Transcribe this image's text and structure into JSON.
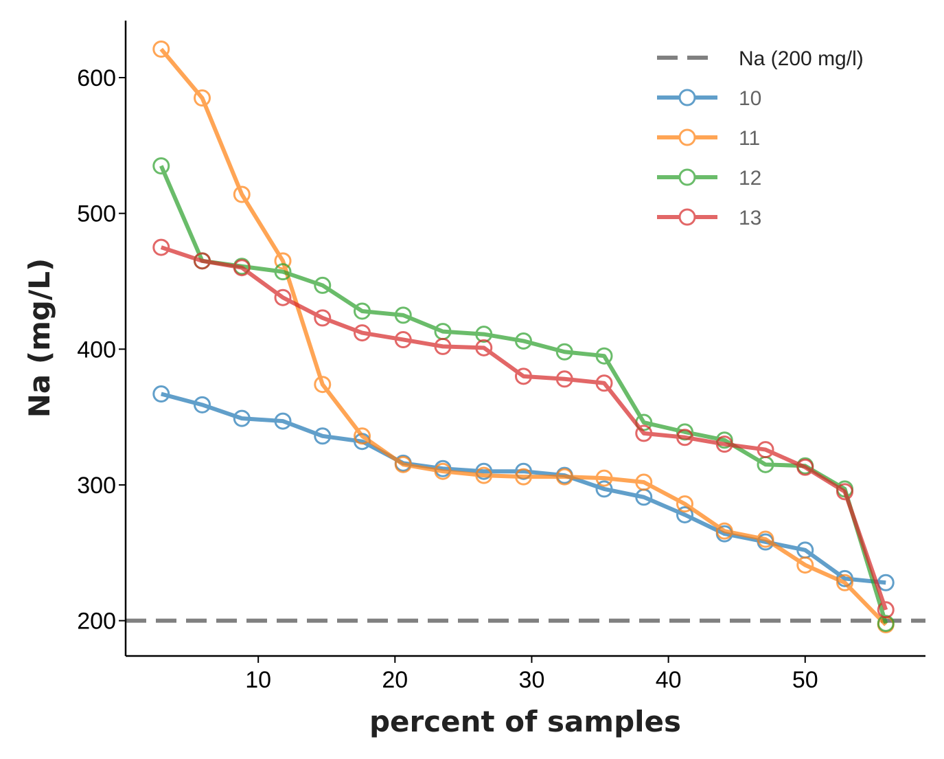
{
  "chart_data": {
    "type": "line",
    "xlabel": "percent of samples",
    "ylabel": "Na (mg/L)",
    "xlim": [
      0.3,
      58.8
    ],
    "ylim": [
      174,
      642
    ],
    "xticks": [
      10,
      20,
      30,
      40,
      50
    ],
    "yticks": [
      200,
      300,
      400,
      500,
      600
    ],
    "x": [
      2.9,
      5.9,
      8.8,
      11.8,
      14.7,
      17.6,
      20.6,
      23.5,
      26.5,
      29.4,
      32.4,
      35.3,
      38.2,
      41.2,
      44.1,
      47.1,
      50.0,
      52.9,
      55.9
    ],
    "reference_line": {
      "name": "Na (200 mg/l)",
      "y": 200,
      "color": "#808080"
    },
    "series": [
      {
        "name": "10",
        "color": "#1f77b4",
        "values": [
          367,
          359,
          349,
          347,
          336,
          332,
          316,
          312,
          310,
          310,
          307,
          297,
          291,
          278,
          264,
          258,
          252,
          231,
          228
        ]
      },
      {
        "name": "11",
        "color": "#ff7f0e",
        "values": [
          621,
          585,
          514,
          465,
          374,
          336,
          315,
          310,
          307,
          306,
          306,
          305,
          302,
          286,
          266,
          260,
          241,
          228,
          197
        ]
      },
      {
        "name": "12",
        "color": "#2ca02c",
        "values": [
          535,
          465,
          461,
          457,
          447,
          428,
          425,
          413,
          411,
          406,
          398,
          395,
          346,
          339,
          333,
          315,
          314,
          297,
          198
        ]
      },
      {
        "name": "13",
        "color": "#d62728",
        "values": [
          475,
          465,
          460,
          438,
          423,
          412,
          407,
          402,
          401,
          380,
          378,
          375,
          338,
          335,
          330,
          326,
          313,
          295,
          208
        ]
      }
    ],
    "legend": "top-right",
    "grid": false
  }
}
